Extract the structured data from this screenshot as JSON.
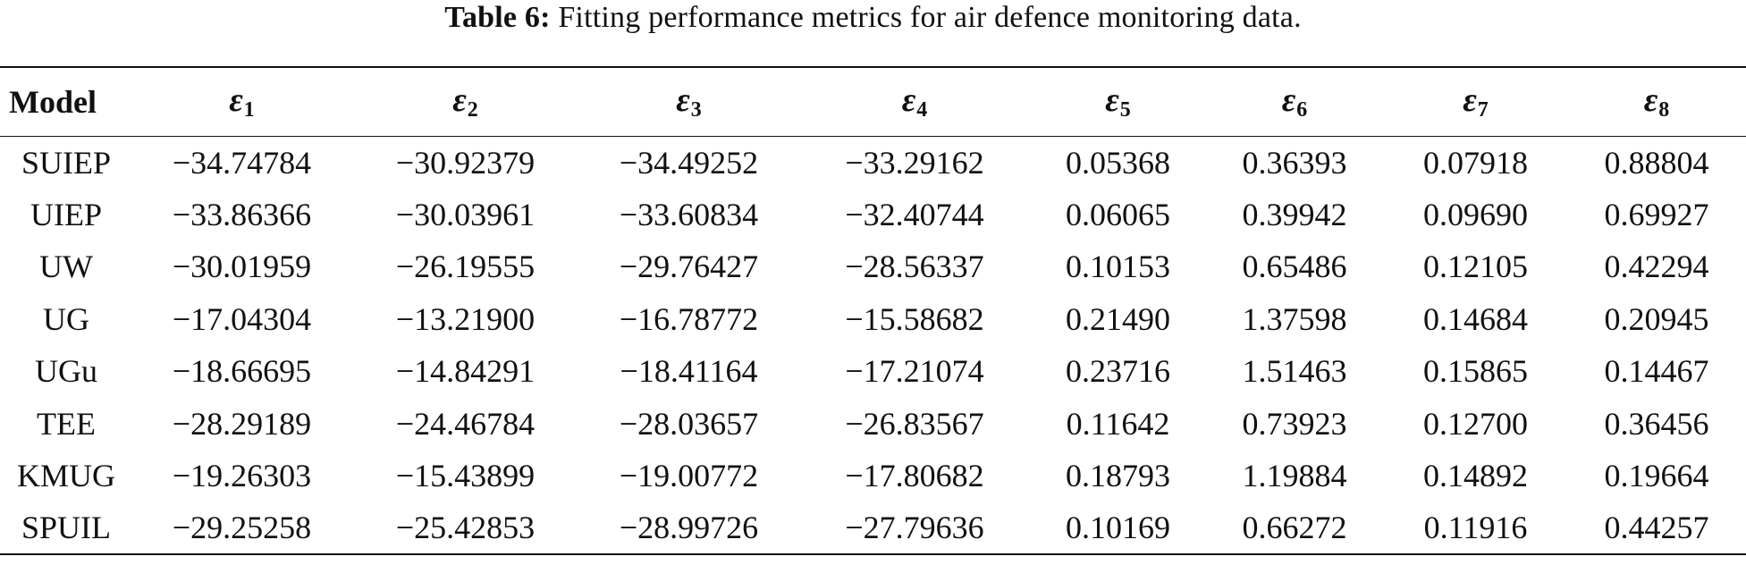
{
  "caption": {
    "label": "Table 6:",
    "text": "Fitting performance metrics for air defence monitoring data."
  },
  "table": {
    "header": {
      "model": "Model",
      "eps_symbol": "ε",
      "eps_indices": [
        "1",
        "2",
        "3",
        "4",
        "5",
        "6",
        "7",
        "8"
      ]
    },
    "rows": [
      {
        "model": "SUIEP",
        "values": [
          "−34.74784",
          "−30.92379",
          "−34.49252",
          "−33.29162",
          "0.05368",
          "0.36393",
          "0.07918",
          "0.88804"
        ]
      },
      {
        "model": "UIEP",
        "values": [
          "−33.86366",
          "−30.03961",
          "−33.60834",
          "−32.40744",
          "0.06065",
          "0.39942",
          "0.09690",
          "0.69927"
        ]
      },
      {
        "model": "UW",
        "values": [
          "−30.01959",
          "−26.19555",
          "−29.76427",
          "−28.56337",
          "0.10153",
          "0.65486",
          "0.12105",
          "0.42294"
        ]
      },
      {
        "model": "UG",
        "values": [
          "−17.04304",
          "−13.21900",
          "−16.78772",
          "−15.58682",
          "0.21490",
          "1.37598",
          "0.14684",
          "0.20945"
        ]
      },
      {
        "model": "UGu",
        "values": [
          "−18.66695",
          "−14.84291",
          "−18.41164",
          "−17.21074",
          "0.23716",
          "1.51463",
          "0.15865",
          "0.14467"
        ]
      },
      {
        "model": "TEE",
        "values": [
          "−28.29189",
          "−24.46784",
          "−28.03657",
          "−26.83567",
          "0.11642",
          "0.73923",
          "0.12700",
          "0.36456"
        ]
      },
      {
        "model": "KMUG",
        "values": [
          "−19.26303",
          "−15.43899",
          "−19.00772",
          "−17.80682",
          "0.18793",
          "1.19884",
          "0.14892",
          "0.19664"
        ]
      },
      {
        "model": "SPUIL",
        "values": [
          "−29.25258",
          "−25.42853",
          "−28.99726",
          "−27.79636",
          "0.10169",
          "0.66272",
          "0.11916",
          "0.44257"
        ]
      }
    ]
  }
}
